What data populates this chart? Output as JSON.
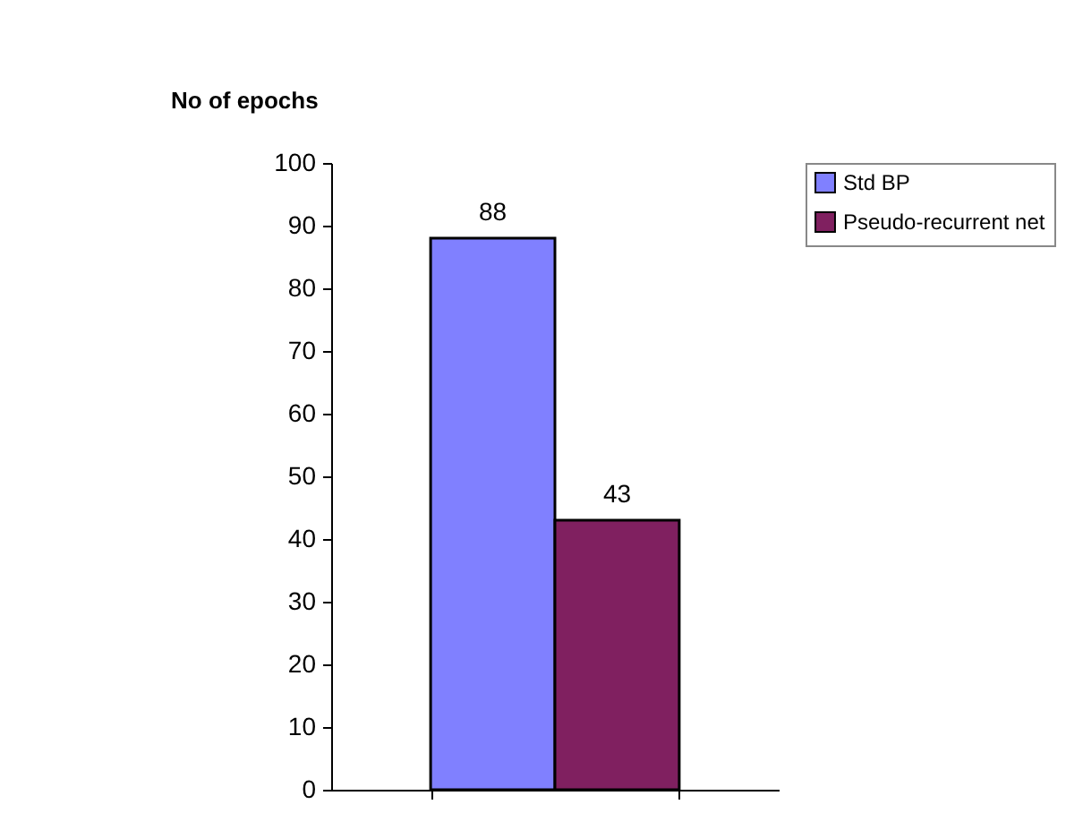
{
  "chart_data": {
    "type": "bar",
    "ylabel": "No of epochs",
    "categories": [
      null
    ],
    "series": [
      {
        "name": "Std BP",
        "color": "#8080ff",
        "values": [
          88
        ]
      },
      {
        "name": "Pseudo-recurrent net",
        "color": "#802060",
        "values": [
          43
        ]
      }
    ],
    "ylim": [
      0,
      100
    ],
    "yticks": [
      0,
      10,
      20,
      30,
      40,
      50,
      60,
      70,
      80,
      90,
      100
    ],
    "grid": false,
    "legend": "right",
    "data_labels": true
  }
}
